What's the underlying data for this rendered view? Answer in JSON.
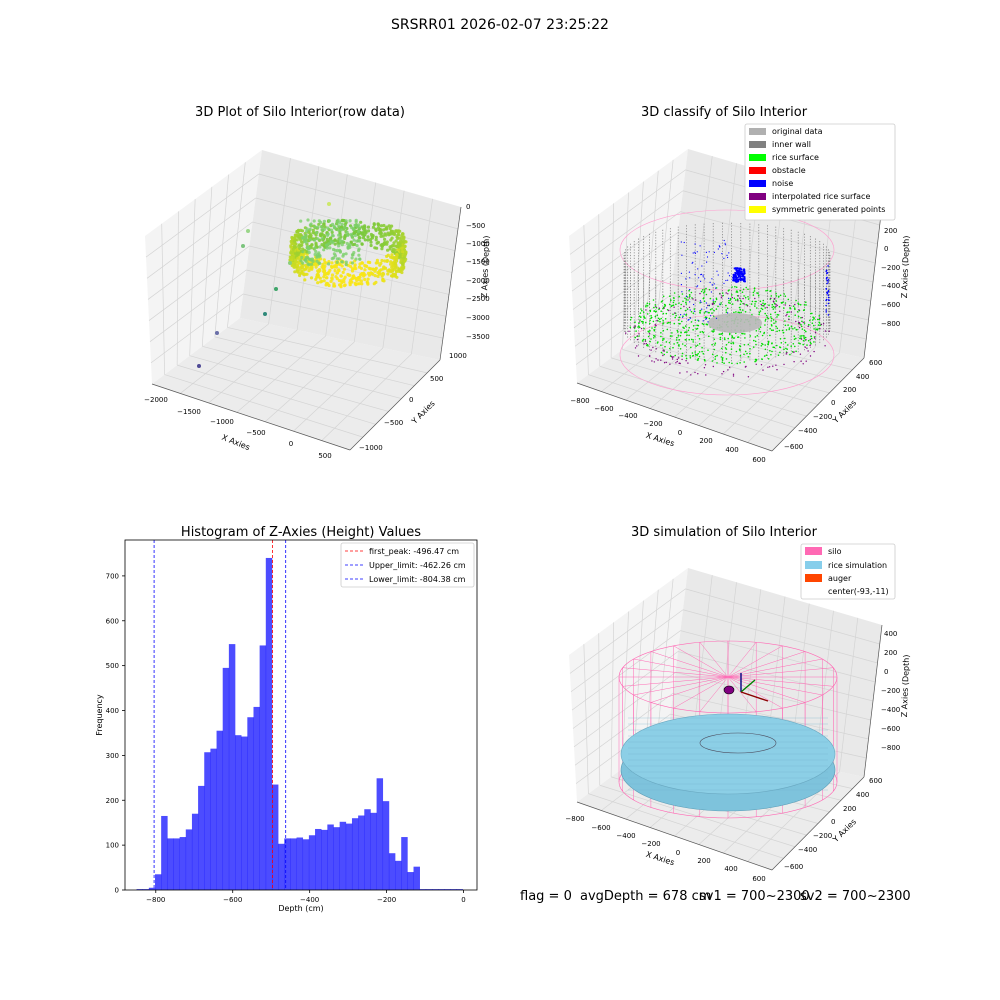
{
  "suptitle": "SRSRR01 2026-02-07 23:25:22",
  "status": {
    "flag": "flag = 0",
    "avg_depth": "avgDepth = 678 cm",
    "sv1": "sv1 = 700~2300",
    "sv2": "sv2 = 700~2300"
  },
  "panels": {
    "raw": {
      "title": "3D Plot of Silo Interior(row data)",
      "xlabel": "X Axies",
      "ylabel": "Y Axies",
      "zlabel": "Z Axies (Depth)",
      "xticks": [
        "−2000",
        "−1500",
        "−1000",
        "−500",
        "0",
        "500"
      ],
      "yticks": [
        "1000",
        "500",
        "0",
        "−500",
        "−1000"
      ],
      "zticks": [
        "0",
        "−500",
        "−1000",
        "−1500",
        "−2000",
        "−2500",
        "−3000",
        "−3500"
      ]
    },
    "classify": {
      "title": "3D classify of Silo Interior",
      "xlabel": "X Axies",
      "ylabel": "Y Axies",
      "zlabel": "Z Axies (Depth)",
      "xticks": [
        "−800",
        "−600",
        "−400",
        "−200",
        "0",
        "200",
        "400",
        "600"
      ],
      "yticks": [
        "600",
        "400",
        "200",
        "0",
        "−200",
        "−400",
        "−600"
      ],
      "zticks": [
        "200",
        "0",
        "−200",
        "−400",
        "−600",
        "−800"
      ],
      "legend": [
        {
          "label": "original data",
          "color": "#b0b0b0"
        },
        {
          "label": "inner wall",
          "color": "#808080"
        },
        {
          "label": "rice surface",
          "color": "#00ff00"
        },
        {
          "label": "obstacle",
          "color": "#ff0000"
        },
        {
          "label": "noise",
          "color": "#0000ff"
        },
        {
          "label": "interpolated rice surface",
          "color": "#800080"
        },
        {
          "label": "symmetric generated points",
          "color": "#ffff00"
        }
      ]
    },
    "simulation": {
      "title": "3D simulation of Silo Interior",
      "xlabel": "X Axies",
      "ylabel": "Y Axies",
      "zlabel": "Z Axies (Depth)",
      "xticks": [
        "−800",
        "−600",
        "−400",
        "−200",
        "0",
        "200",
        "400",
        "600"
      ],
      "yticks": [
        "600",
        "400",
        "200",
        "0",
        "−200",
        "−400",
        "−600"
      ],
      "zticks": [
        "400",
        "200",
        "0",
        "−200",
        "−400",
        "−600",
        "−800"
      ],
      "legend": [
        {
          "label": "silo",
          "color": "#ff69b4"
        },
        {
          "label": "rice simulation",
          "color": "#87ceeb"
        },
        {
          "label": "auger",
          "color": "#ff4500"
        },
        {
          "label": "center(-93,-11)",
          "color": null
        }
      ]
    }
  },
  "chart_data": {
    "type": "bar",
    "title": "Histogram of Z-Axies (Height) Values",
    "xlabel": "Depth (cm)",
    "ylabel": "Frequency",
    "xlim": [
      -880,
      35
    ],
    "ylim": [
      0,
      780
    ],
    "xticks": [
      -800,
      -600,
      -400,
      -200,
      0
    ],
    "yticks": [
      0,
      100,
      200,
      300,
      400,
      500,
      600,
      700
    ],
    "bar_color": "#0000ff",
    "bin_edges": [
      -850,
      -834,
      -818,
      -802,
      -786,
      -770,
      -754,
      -738,
      -722,
      -706,
      -690,
      -674,
      -658,
      -642,
      -626,
      -610,
      -594,
      -578,
      -562,
      -546,
      -530,
      -514,
      -498,
      -482,
      -466,
      -450,
      -434,
      -418,
      -402,
      -386,
      -370,
      -354,
      -338,
      -322,
      -306,
      -290,
      -274,
      -258,
      -242,
      -226,
      -210,
      -194,
      -178,
      -162,
      -146,
      -130,
      -114,
      -98,
      -82,
      -66,
      -50,
      -34,
      -18,
      -2
    ],
    "values": [
      2,
      2,
      5,
      35,
      165,
      115,
      115,
      118,
      135,
      170,
      232,
      307,
      315,
      355,
      495,
      548,
      345,
      342,
      385,
      408,
      545,
      740,
      235,
      103,
      115,
      115,
      117,
      113,
      122,
      136,
      134,
      146,
      140,
      152,
      148,
      160,
      166,
      180,
      172,
      249,
      198,
      82,
      65,
      118,
      40,
      52,
      2,
      2,
      2,
      2,
      2,
      2,
      2
    ],
    "lines": [
      {
        "label": "first_peak: -496.47 cm",
        "x": -496.47,
        "color": "#ff0000"
      },
      {
        "label": "Upper_limit: -462.26 cm",
        "x": -462.26,
        "color": "#0000ff"
      },
      {
        "label": "Lower_limit: -804.38 cm",
        "x": -804.38,
        "color": "#0000ff"
      }
    ]
  }
}
